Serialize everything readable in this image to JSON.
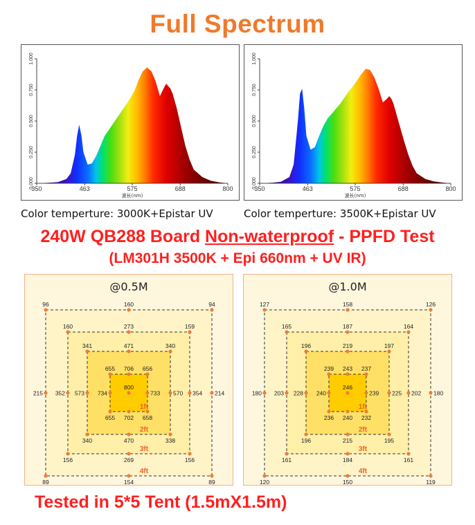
{
  "title": "Full Spectrum",
  "colors": {
    "title": "#ef7a2b",
    "red": "#ff1f1f",
    "dot": "#f07c3a",
    "ring_label": "#e8642a"
  },
  "chart_data": [
    {
      "type": "area",
      "title": "",
      "xlabel": "波长(nm)",
      "ylabel": "",
      "x_ticks": [
        "350",
        "463",
        "575",
        "688",
        "800"
      ],
      "y_ticks": [
        "0.000",
        "0.250",
        "0.500",
        "0.750",
        "1.000"
      ],
      "xlim": [
        350,
        800
      ],
      "ylim": [
        0,
        1
      ],
      "x": [
        350,
        380,
        400,
        420,
        430,
        440,
        445,
        450,
        455,
        460,
        470,
        480,
        490,
        500,
        510,
        520,
        530,
        540,
        550,
        560,
        570,
        580,
        590,
        600,
        610,
        620,
        630,
        640,
        650,
        655,
        660,
        665,
        670,
        680,
        690,
        700,
        710,
        720,
        740,
        760,
        780,
        800
      ],
      "series": [
        {
          "values": [
            0.0,
            0.005,
            0.01,
            0.035,
            0.08,
            0.23,
            0.38,
            0.47,
            0.39,
            0.25,
            0.15,
            0.16,
            0.22,
            0.3,
            0.38,
            0.43,
            0.48,
            0.53,
            0.58,
            0.63,
            0.68,
            0.74,
            0.83,
            0.9,
            0.93,
            0.9,
            0.82,
            0.7,
            0.77,
            0.8,
            0.78,
            0.76,
            0.72,
            0.6,
            0.45,
            0.3,
            0.19,
            0.11,
            0.05,
            0.02,
            0.008,
            0.0
          ]
        }
      ],
      "caption": "Color temperture: 3000K+Epistar UV"
    },
    {
      "type": "area",
      "title": "",
      "xlabel": "波长(nm)",
      "ylabel": "",
      "x_ticks": [
        "350",
        "463",
        "575",
        "688",
        "800"
      ],
      "y_ticks": [
        "0.000",
        "0.250",
        "0.500",
        "0.750",
        "1.000"
      ],
      "xlim": [
        350,
        800
      ],
      "ylim": [
        0,
        1
      ],
      "x": [
        350,
        380,
        400,
        420,
        430,
        440,
        445,
        450,
        455,
        460,
        470,
        480,
        490,
        500,
        510,
        520,
        530,
        540,
        550,
        560,
        570,
        580,
        590,
        600,
        610,
        620,
        630,
        640,
        650,
        655,
        660,
        665,
        670,
        680,
        690,
        700,
        710,
        720,
        740,
        760,
        780,
        800
      ],
      "series": [
        {
          "values": [
            0.0,
            0.005,
            0.012,
            0.05,
            0.15,
            0.5,
            0.72,
            0.76,
            0.6,
            0.38,
            0.27,
            0.29,
            0.38,
            0.46,
            0.52,
            0.56,
            0.6,
            0.64,
            0.69,
            0.74,
            0.78,
            0.83,
            0.88,
            0.92,
            0.91,
            0.85,
            0.76,
            0.65,
            0.68,
            0.7,
            0.68,
            0.64,
            0.58,
            0.46,
            0.34,
            0.23,
            0.14,
            0.08,
            0.035,
            0.015,
            0.006,
            0.0
          ]
        }
      ],
      "caption": "Color temperture: 3500K+Epistar UV"
    },
    {
      "type": "table",
      "label": "@0.5M",
      "rings": [
        {
          "ring_label": "1ft",
          "values": [
            {
              "v": "655",
              "c": 0,
              "r": 0
            },
            {
              "v": "706",
              "c": 1,
              "r": 0
            },
            {
              "v": "656",
              "c": 2,
              "r": 0
            },
            {
              "v": "734",
              "c": 0,
              "r": 1
            },
            {
              "v": "800",
              "c": 1,
              "r": 1
            },
            {
              "v": "733",
              "c": 2,
              "r": 1
            },
            {
              "v": "655",
              "c": 0,
              "r": 2
            },
            {
              "v": "702",
              "c": 1,
              "r": 2
            },
            {
              "v": "658",
              "c": 2,
              "r": 2
            }
          ]
        },
        {
          "ring_label": "2ft",
          "values": [
            {
              "v": "341",
              "c": 0,
              "r": 0
            },
            {
              "v": "471",
              "c": 1,
              "r": 0
            },
            {
              "v": "340",
              "c": 2,
              "r": 0
            },
            {
              "v": "573",
              "c": 0,
              "r": 1
            },
            {
              "v": "570",
              "c": 2,
              "r": 1
            },
            {
              "v": "340",
              "c": 0,
              "r": 2
            },
            {
              "v": "470",
              "c": 1,
              "r": 2
            },
            {
              "v": "338",
              "c": 2,
              "r": 2
            }
          ]
        },
        {
          "ring_label": "3ft",
          "values": [
            {
              "v": "160",
              "c": 0,
              "r": 0
            },
            {
              "v": "273",
              "c": 1,
              "r": 0
            },
            {
              "v": "159",
              "c": 2,
              "r": 0
            },
            {
              "v": "352",
              "c": 0,
              "r": 1
            },
            {
              "v": "354",
              "c": 2,
              "r": 1
            },
            {
              "v": "156",
              "c": 0,
              "r": 2
            },
            {
              "v": "269",
              "c": 1,
              "r": 2
            },
            {
              "v": "156",
              "c": 2,
              "r": 2
            }
          ]
        },
        {
          "ring_label": "4ft",
          "values": [
            {
              "v": "96",
              "c": 0,
              "r": 0
            },
            {
              "v": "160",
              "c": 1,
              "r": 0
            },
            {
              "v": "94",
              "c": 2,
              "r": 0
            },
            {
              "v": "215",
              "c": 0,
              "r": 1
            },
            {
              "v": "214",
              "c": 2,
              "r": 1
            },
            {
              "v": "89",
              "c": 0,
              "r": 2
            },
            {
              "v": "154",
              "c": 1,
              "r": 2
            },
            {
              "v": "89",
              "c": 2,
              "r": 2
            }
          ]
        }
      ]
    },
    {
      "type": "table",
      "label": "@1.0M",
      "rings": [
        {
          "ring_label": "1ft",
          "values": [
            {
              "v": "239",
              "c": 0,
              "r": 0
            },
            {
              "v": "243",
              "c": 1,
              "r": 0
            },
            {
              "v": "237",
              "c": 2,
              "r": 0
            },
            {
              "v": "240",
              "c": 0,
              "r": 1
            },
            {
              "v": "246",
              "c": 1,
              "r": 1
            },
            {
              "v": "239",
              "c": 2,
              "r": 1
            },
            {
              "v": "236",
              "c": 0,
              "r": 2
            },
            {
              "v": "240",
              "c": 1,
              "r": 2
            },
            {
              "v": "232",
              "c": 2,
              "r": 2
            }
          ]
        },
        {
          "ring_label": "2ft",
          "values": [
            {
              "v": "196",
              "c": 0,
              "r": 0
            },
            {
              "v": "219",
              "c": 1,
              "r": 0
            },
            {
              "v": "197",
              "c": 2,
              "r": 0
            },
            {
              "v": "228",
              "c": 0,
              "r": 1
            },
            {
              "v": "225",
              "c": 2,
              "r": 1
            },
            {
              "v": "196",
              "c": 0,
              "r": 2
            },
            {
              "v": "215",
              "c": 1,
              "r": 2
            },
            {
              "v": "195",
              "c": 2,
              "r": 2
            }
          ]
        },
        {
          "ring_label": "3ft",
          "values": [
            {
              "v": "165",
              "c": 0,
              "r": 0
            },
            {
              "v": "187",
              "c": 1,
              "r": 0
            },
            {
              "v": "164",
              "c": 2,
              "r": 0
            },
            {
              "v": "203",
              "c": 0,
              "r": 1
            },
            {
              "v": "202",
              "c": 2,
              "r": 1
            },
            {
              "v": "161",
              "c": 0,
              "r": 2
            },
            {
              "v": "184",
              "c": 1,
              "r": 2
            },
            {
              "v": "161",
              "c": 2,
              "r": 2
            }
          ]
        },
        {
          "ring_label": "4ft",
          "values": [
            {
              "v": "127",
              "c": 0,
              "r": 0
            },
            {
              "v": "158",
              "c": 1,
              "r": 0
            },
            {
              "v": "126",
              "c": 2,
              "r": 0
            },
            {
              "v": "180",
              "c": 0,
              "r": 1
            },
            {
              "v": "180",
              "c": 2,
              "r": 1
            },
            {
              "v": "120",
              "c": 0,
              "r": 2
            },
            {
              "v": "150",
              "c": 1,
              "r": 2
            },
            {
              "v": "119",
              "c": 2,
              "r": 2
            }
          ]
        }
      ]
    }
  ],
  "headline": {
    "before": "240W QB288 Board ",
    "underlined": "Non-waterproof",
    "after": " - PPFD Test"
  },
  "subheadline": "(LM301H 3500K + Epi 660nm + UV IR)",
  "footer": "Tested in 5*5 Tent (1.5mX1.5m)"
}
